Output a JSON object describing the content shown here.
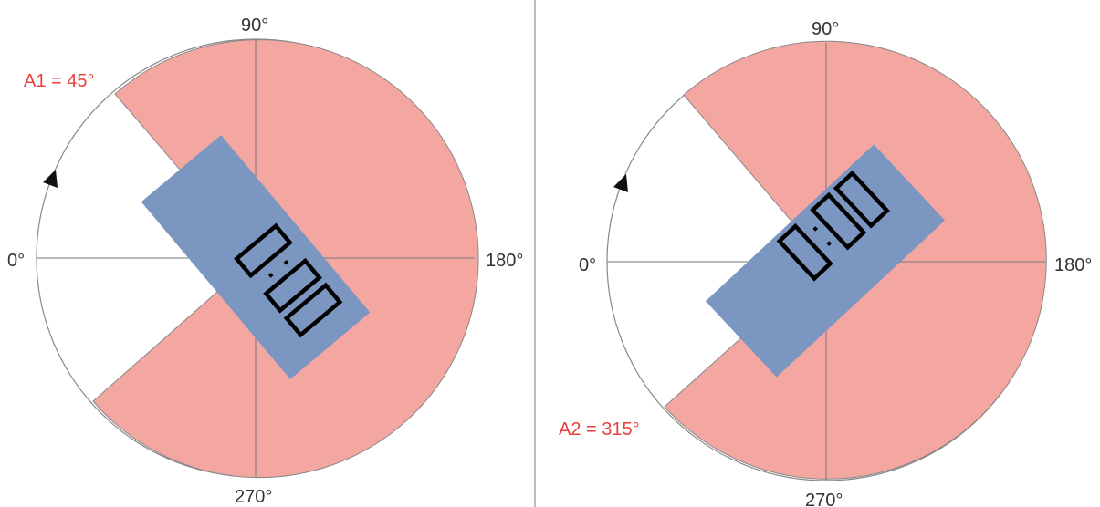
{
  "colors": {
    "sector_fill": "#f4a6a0",
    "panel_fill": "#7b96c0",
    "angle_label": "#e8403c",
    "axis_stroke": "#777777",
    "background": "#ffffff"
  },
  "icons": {
    "direction_marker": "triangle-arrow-icon",
    "display": "seven-segment-display"
  },
  "diagrams": [
    {
      "labels": {
        "deg_0": "0°",
        "deg_90": "90°",
        "deg_180": "180°",
        "deg_270": "270°",
        "angle": "A1 = 45°"
      },
      "display_text": "0:00"
    },
    {
      "labels": {
        "deg_0": "0°",
        "deg_90": "90°",
        "deg_180": "180°",
        "deg_270": "270°",
        "angle": "A2 = 315°"
      },
      "display_text": "0:00"
    }
  ]
}
